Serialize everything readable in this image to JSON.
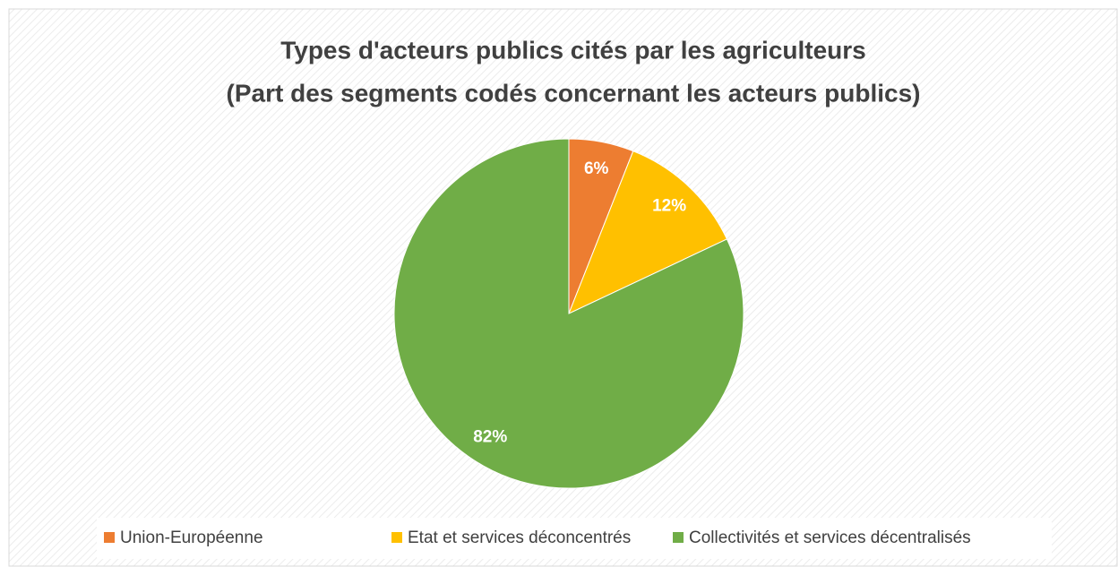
{
  "chart_data": {
    "type": "pie",
    "title": "Types d'acteurs publics cités par les agriculteurs",
    "subtitle": "(Part des segments codés concernant les acteurs publics)",
    "categories": [
      "Union-Européenne",
      "Etat et services déconcentrés",
      "Collectivités et services décentralisés"
    ],
    "values": [
      6,
      12,
      82
    ],
    "value_labels": [
      "6%",
      "12%",
      "82%"
    ],
    "colors": [
      "#ed7d31",
      "#ffc000",
      "#70ad47"
    ],
    "legend": "bottom"
  }
}
